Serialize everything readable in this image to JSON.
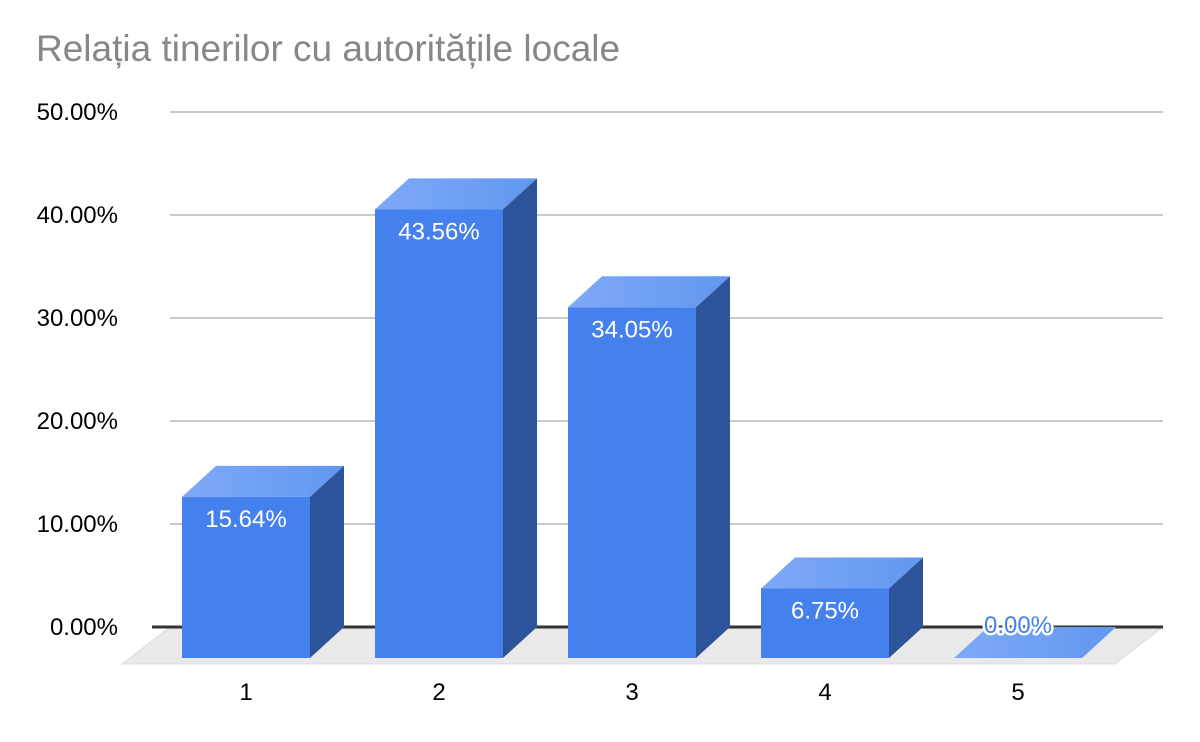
{
  "chart_data": {
    "type": "bar",
    "style": "3d-column",
    "title": "Relația tinerilor cu autoritățile locale",
    "categories": [
      "1",
      "2",
      "3",
      "4",
      "5"
    ],
    "values": [
      15.64,
      43.56,
      34.05,
      6.75,
      0
    ],
    "data_labels": [
      "15.64%",
      "43.56%",
      "34.05%",
      "6.75%",
      "0.00%"
    ],
    "series_name": "",
    "xlabel": "",
    "ylabel": "",
    "ylim": [
      0,
      50
    ],
    "grid": true,
    "legend": "none",
    "yticks": [
      {
        "value": 50,
        "label": "50.00%"
      },
      {
        "value": 40,
        "label": "40.00%"
      },
      {
        "value": 30,
        "label": "30.00%"
      },
      {
        "value": 20,
        "label": "20.00%"
      },
      {
        "value": 10,
        "label": "10.00%"
      },
      {
        "value": 0,
        "label": "0.00%"
      }
    ],
    "colors": {
      "bar_front": "#4581ec",
      "bar_top": "#6197ef",
      "bar_top_light": "#7fa9f7",
      "bar_side": "#2d549b",
      "floor": "#e9e9e9",
      "floor_edge": "#dcdcdc",
      "gridline": "#c9c9c9",
      "axis_line": "#333333",
      "tick_text": "#000000",
      "category_text": "#000000",
      "value_label": "#ffffff",
      "zero_label": "#4581ec",
      "zero_label_halo": "#ffffff",
      "title_text": "#878787",
      "background": "#ffffff"
    }
  }
}
